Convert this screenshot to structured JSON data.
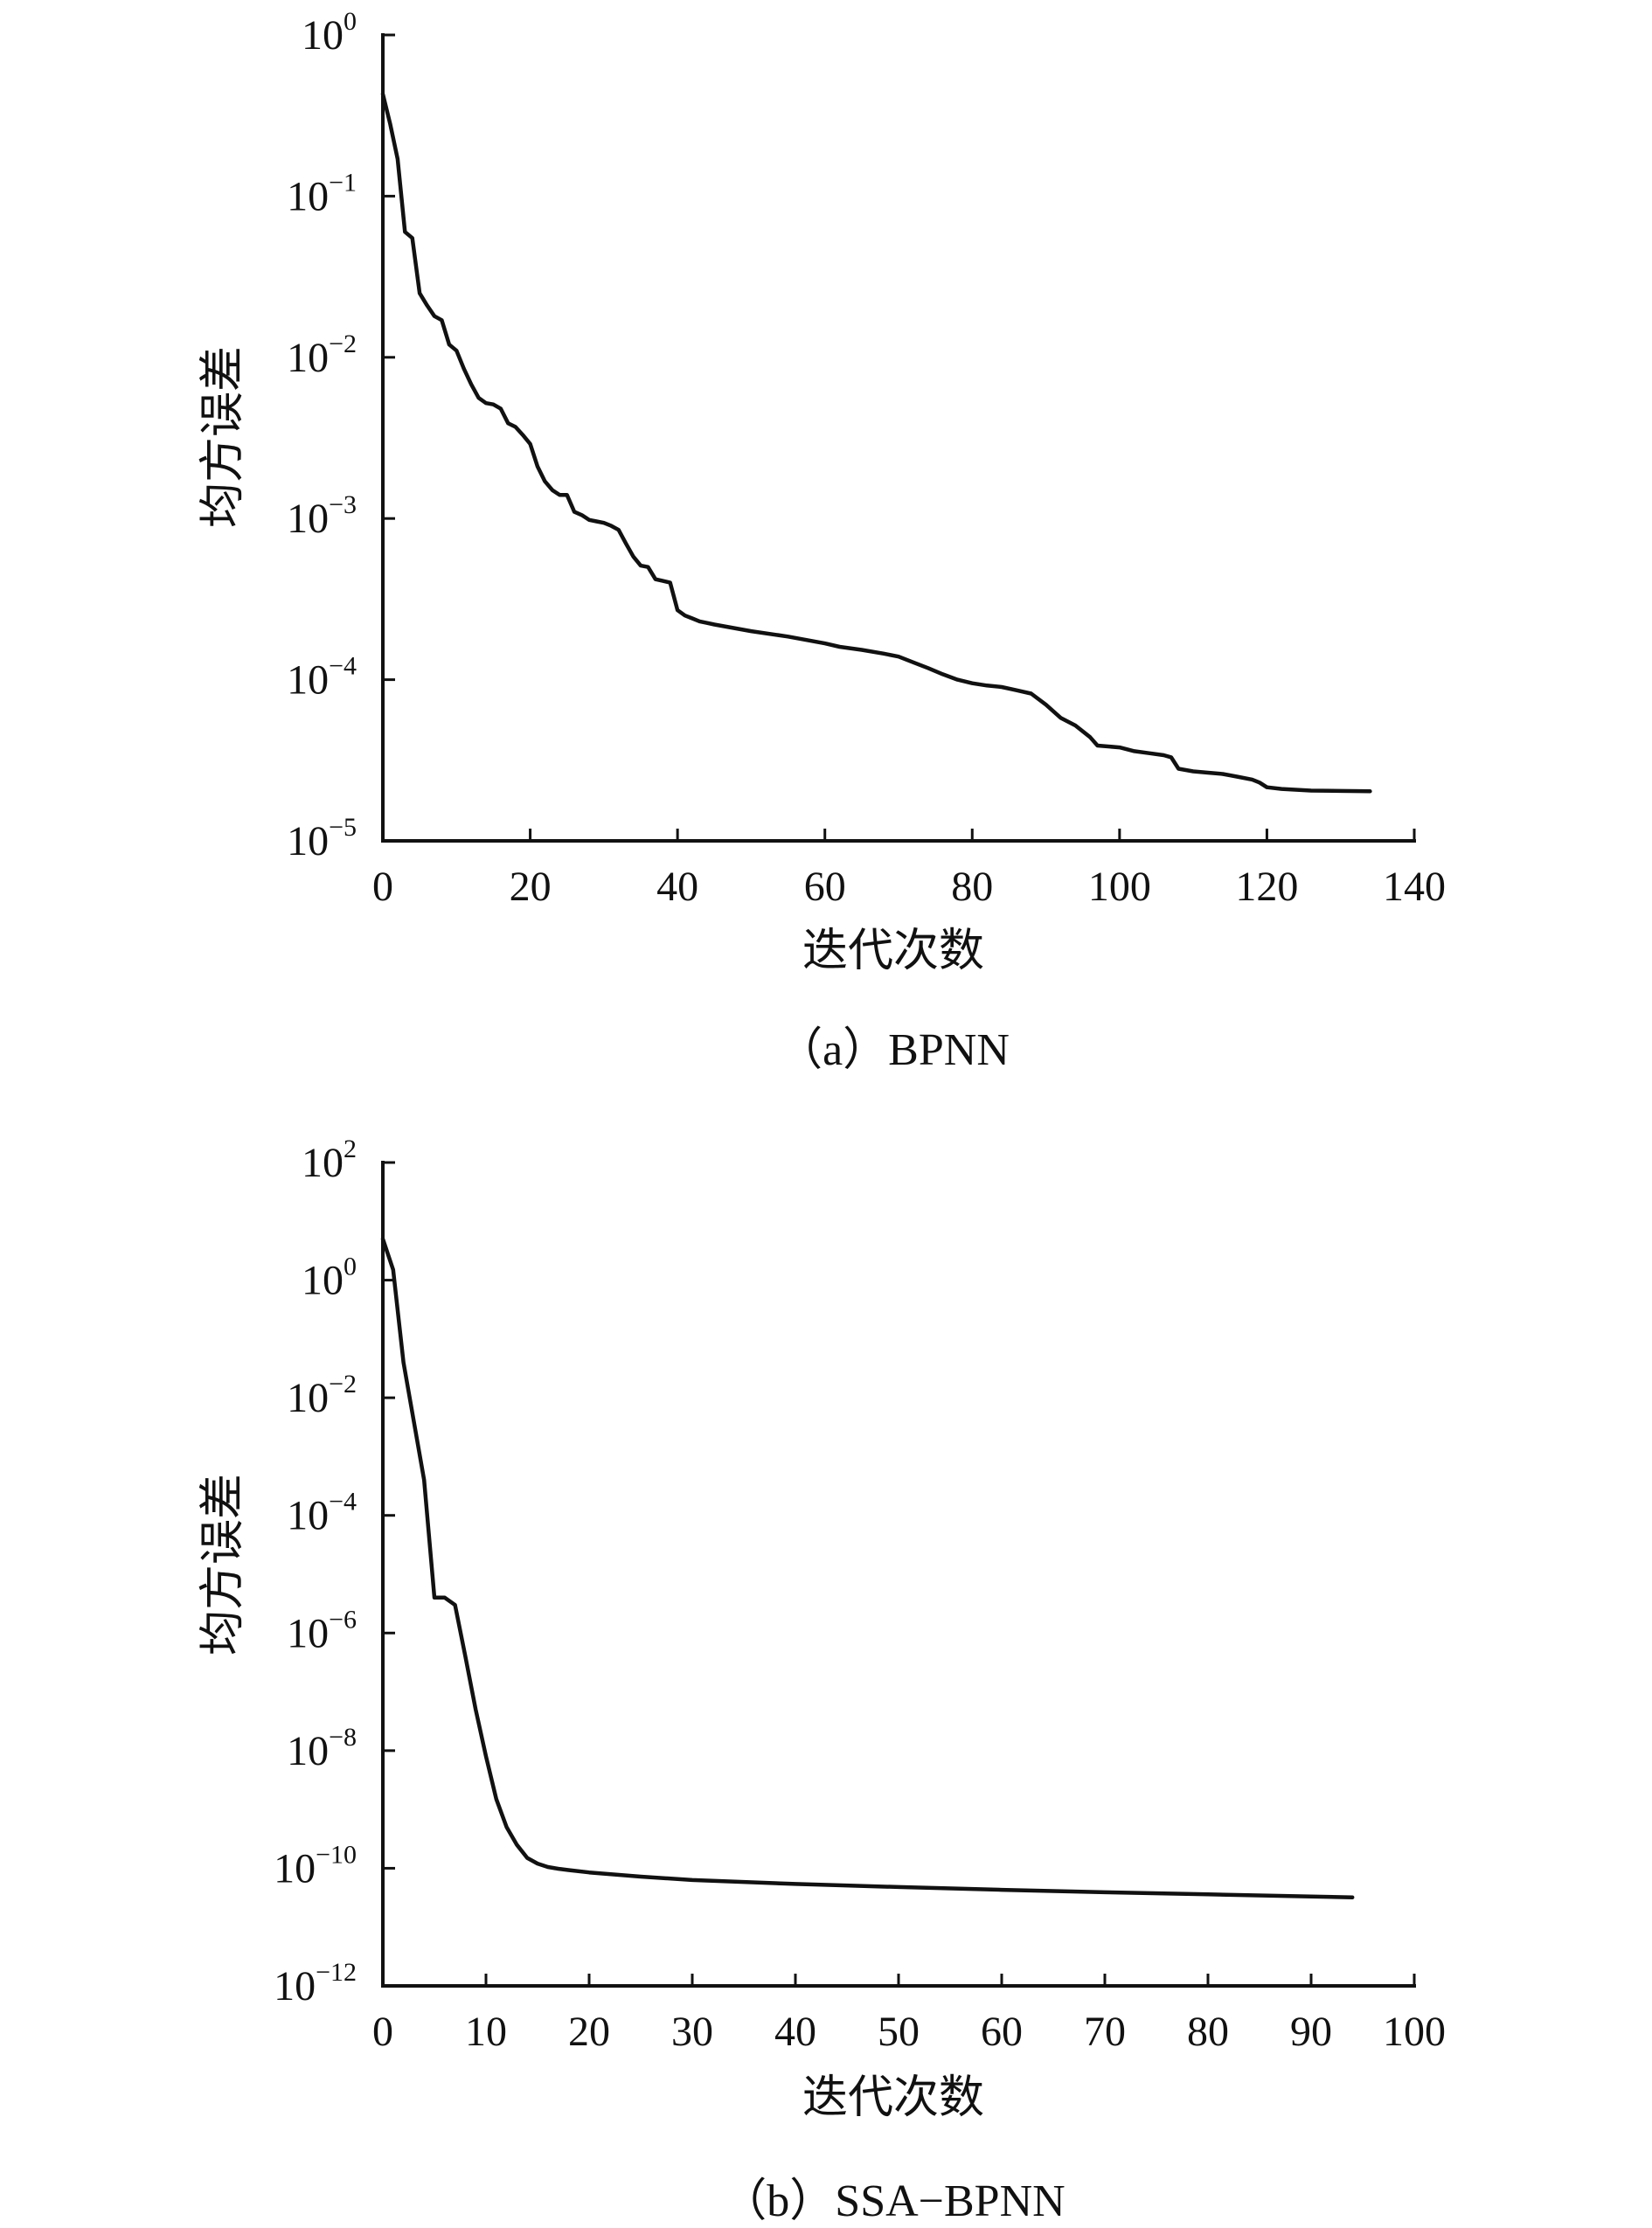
{
  "chart_data": [
    {
      "type": "line",
      "caption": "（a）BPNN",
      "xlabel": "迭代次数",
      "ylabel": "均方误差",
      "y_scale": "log",
      "xlim": [
        0,
        140
      ],
      "ylim": [
        1e-05,
        1
      ],
      "xticks": [
        0,
        20,
        40,
        60,
        80,
        100,
        120,
        140
      ],
      "xtick_labels": [
        "0",
        "20",
        "40",
        "60",
        "80",
        "100",
        "120",
        "140"
      ],
      "yticks": [
        0,
        -1,
        -2,
        -3,
        -4,
        -5
      ],
      "ytick_labels": [
        {
          "base": "10",
          "exp": "0"
        },
        {
          "base": "10",
          "exp": "−1"
        },
        {
          "base": "10",
          "exp": "−2"
        },
        {
          "base": "10",
          "exp": "−3"
        },
        {
          "base": "10",
          "exp": "−4"
        },
        {
          "base": "10",
          "exp": "−5"
        }
      ],
      "grid": false,
      "series": [
        {
          "x": [
            0,
            1,
            2,
            3,
            4,
            5,
            6,
            7,
            8,
            9,
            10,
            11,
            12,
            13,
            14,
            15,
            16,
            17,
            18,
            19,
            20,
            21,
            22,
            23,
            24,
            25,
            26,
            27,
            28,
            29,
            30,
            31,
            32,
            33,
            34,
            35,
            36,
            37,
            38,
            39,
            40,
            41,
            42,
            43,
            44,
            45,
            50,
            55,
            60,
            62,
            65,
            68,
            70,
            72,
            74,
            76,
            78,
            80,
            82,
            84,
            86,
            88,
            90,
            92,
            94,
            96,
            97,
            100,
            102,
            104,
            106,
            107,
            108,
            110,
            112,
            114,
            116,
            118,
            119,
            120,
            122,
            126,
            130,
            134
          ],
          "y": [
            0.43,
            0.28,
            0.17,
            0.06,
            0.055,
            0.025,
            0.021,
            0.018,
            0.017,
            0.012,
            0.011,
            0.0085,
            0.0068,
            0.0056,
            0.0052,
            0.0051,
            0.0048,
            0.0039,
            0.0037,
            0.0033,
            0.0029,
            0.0021,
            0.0017,
            0.0015,
            0.0014,
            0.0014,
            0.0011,
            0.00105,
            0.00098,
            0.00096,
            0.00094,
            0.0009,
            0.00085,
            0.0007,
            0.00058,
            0.00051,
            0.0005,
            0.00042,
            0.00041,
            0.0004,
            0.00027,
            0.00025,
            0.00024,
            0.00023,
            0.000225,
            0.00022,
            0.0002,
            0.000185,
            0.000168,
            0.00016,
            0.000153,
            0.000145,
            0.000139,
            0.000128,
            0.000118,
            0.000108,
            0.0001,
            9.5e-05,
            9.2e-05,
            9e-05,
            8.6e-05,
            8.2e-05,
            7e-05,
            5.8e-05,
            5.2e-05,
            4.4e-05,
            3.9e-05,
            3.8e-05,
            3.6e-05,
            3.5e-05,
            3.4e-05,
            3.3e-05,
            2.8e-05,
            2.7e-05,
            2.65e-05,
            2.6e-05,
            2.5e-05,
            2.4e-05,
            2.3e-05,
            2.15e-05,
            2.1e-05,
            2.05e-05,
            2.04e-05,
            2.03e-05
          ]
        }
      ]
    },
    {
      "type": "line",
      "caption": "（b）SSA−BPNN",
      "xlabel": "迭代次数",
      "ylabel": "均方误差",
      "y_scale": "log",
      "xlim": [
        0,
        100
      ],
      "ylim": [
        1e-12,
        100
      ],
      "xticks": [
        0,
        10,
        20,
        30,
        40,
        50,
        60,
        70,
        80,
        90,
        100
      ],
      "xtick_labels": [
        "0",
        "10",
        "20",
        "30",
        "40",
        "50",
        "60",
        "70",
        "80",
        "90",
        "100"
      ],
      "yticks": [
        2,
        0,
        -2,
        -4,
        -6,
        -8,
        -10,
        -12
      ],
      "ytick_labels": [
        {
          "base": "10",
          "exp": "2"
        },
        {
          "base": "10",
          "exp": "0"
        },
        {
          "base": "10",
          "exp": "−2"
        },
        {
          "base": "10",
          "exp": "−4"
        },
        {
          "base": "10",
          "exp": "−6"
        },
        {
          "base": "10",
          "exp": "−8"
        },
        {
          "base": "10",
          "exp": "−10"
        },
        {
          "base": "10",
          "exp": "−12"
        }
      ],
      "grid": false,
      "series": [
        {
          "x": [
            0,
            1,
            2,
            3,
            4,
            5,
            6,
            7,
            8,
            9,
            10,
            11,
            12,
            13,
            14,
            15,
            16,
            17,
            18,
            20,
            25,
            30,
            40,
            50,
            60,
            70,
            80,
            90,
            94
          ],
          "y": [
            5,
            1.5,
            0.04,
            0.004,
            0.0004,
            4e-06,
            4e-06,
            3e-06,
            4e-07,
            5e-08,
            8e-09,
            1.5e-09,
            5e-10,
            2.5e-10,
            1.5e-10,
            1.2e-10,
            1.05e-10,
            9.8e-11,
            9.3e-11,
            8.5e-11,
            7.2e-11,
            6.3e-11,
            5.4e-11,
            4.8e-11,
            4.3e-11,
            3.9e-11,
            3.6e-11,
            3.3e-11,
            3.2e-11
          ]
        }
      ]
    }
  ]
}
